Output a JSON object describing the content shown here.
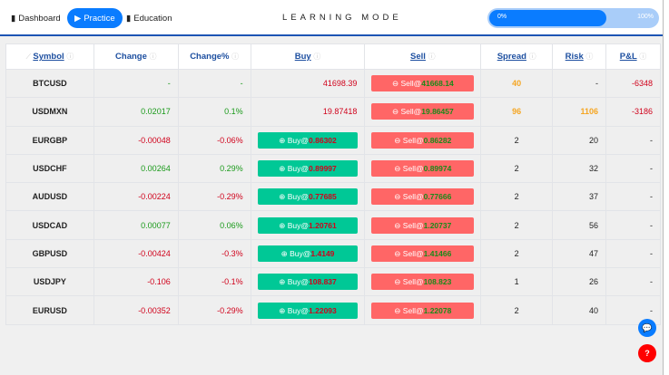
{
  "nav": {
    "dashboard": "Dashboard",
    "practice": "Practice",
    "education": "Education"
  },
  "title": "LEARNING MODE",
  "progress": {
    "value_percent": 0,
    "min_label": "0%",
    "max_label": "100%"
  },
  "columns": [
    "Symbol",
    "Change",
    "Change%",
    "Buy",
    "Sell",
    "Spread",
    "Risk",
    "P&L"
  ],
  "colors": {
    "accent": "#0a7cff",
    "buy": "#00c896",
    "sell": "#ff6666",
    "positive": "#1a9a1a",
    "negative": "#d0021b",
    "warning": "#f5a623"
  },
  "rows": [
    {
      "symbol": "BTCUSD",
      "change": "-",
      "change_pct": "-",
      "buy": "41698.39",
      "buy_button": false,
      "sell": "41668.14",
      "spread": "40",
      "risk": "-",
      "pnl": "-6348",
      "highlight": true
    },
    {
      "symbol": "USDMXN",
      "change": "0.02017",
      "change_pct": "0.1%",
      "buy": "19.87418",
      "buy_button": false,
      "sell": "19.86457",
      "spread": "96",
      "risk": "1106",
      "pnl": "-3186",
      "highlight": true
    },
    {
      "symbol": "EURGBP",
      "change": "-0.00048",
      "change_pct": "-0.06%",
      "buy": "0.86302",
      "buy_button": true,
      "sell": "0.86282",
      "spread": "2",
      "risk": "20",
      "pnl": "-"
    },
    {
      "symbol": "USDCHF",
      "change": "0.00264",
      "change_pct": "0.29%",
      "buy": "0.89997",
      "buy_button": true,
      "sell": "0.89974",
      "spread": "2",
      "risk": "32",
      "pnl": "-"
    },
    {
      "symbol": "AUDUSD",
      "change": "-0.00224",
      "change_pct": "-0.29%",
      "buy": "0.77685",
      "buy_button": true,
      "sell": "0.77666",
      "spread": "2",
      "risk": "37",
      "pnl": "-"
    },
    {
      "symbol": "USDCAD",
      "change": "0.00077",
      "change_pct": "0.06%",
      "buy": "1.20761",
      "buy_button": true,
      "sell": "1.20737",
      "spread": "2",
      "risk": "56",
      "pnl": "-"
    },
    {
      "symbol": "GBPUSD",
      "change": "-0.00424",
      "change_pct": "-0.3%",
      "buy": "1.4149",
      "buy_button": true,
      "sell": "1.41466",
      "spread": "2",
      "risk": "47",
      "pnl": "-"
    },
    {
      "symbol": "USDJPY",
      "change": "-0.106",
      "change_pct": "-0.1%",
      "buy": "108.837",
      "buy_button": true,
      "sell": "108.823",
      "spread": "1",
      "risk": "26",
      "pnl": "-"
    },
    {
      "symbol": "EURUSD",
      "change": "-0.00352",
      "change_pct": "-0.29%",
      "buy": "1.22093",
      "buy_button": true,
      "sell": "1.22078",
      "spread": "2",
      "risk": "40",
      "pnl": "-"
    }
  ],
  "labels": {
    "buy_prefix": "Buy@",
    "sell_prefix": "Sell@"
  }
}
